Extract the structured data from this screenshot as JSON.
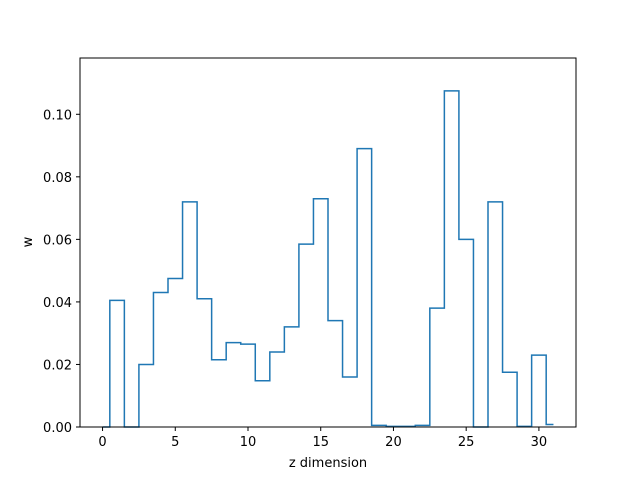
{
  "chart_data": {
    "type": "line",
    "drawstyle": "steps-mid",
    "title": "",
    "xlabel": "z dimension",
    "ylabel": "w",
    "xlim": [
      -1.55,
      32.55
    ],
    "ylim": [
      0.0,
      0.118
    ],
    "xticks": [
      0,
      5,
      10,
      15,
      20,
      25,
      30
    ],
    "xtick_labels": [
      "0",
      "5",
      "10",
      "15",
      "20",
      "25",
      "30"
    ],
    "yticks": [
      0.0,
      0.02,
      0.04,
      0.06,
      0.08,
      0.1
    ],
    "ytick_labels": [
      "0.00",
      "0.02",
      "0.04",
      "0.06",
      "0.08",
      "0.10"
    ],
    "grid": false,
    "legend": "none",
    "series": [
      {
        "color": "#1f77b4",
        "x": [
          0,
          1,
          2,
          3,
          4,
          5,
          6,
          7,
          8,
          9,
          10,
          11,
          12,
          13,
          14,
          15,
          16,
          17,
          18,
          19,
          20,
          21,
          22,
          23,
          24,
          25,
          26,
          27,
          28,
          29,
          30,
          31
        ],
        "y": [
          0.0,
          0.0405,
          0.0,
          0.02,
          0.043,
          0.0475,
          0.072,
          0.041,
          0.0215,
          0.027,
          0.0265,
          0.0148,
          0.024,
          0.032,
          0.0585,
          0.073,
          0.034,
          0.016,
          0.089,
          0.0005,
          0.0002,
          0.0002,
          0.0005,
          0.038,
          0.1075,
          0.06,
          0.0,
          0.072,
          0.0175,
          0.0002,
          0.023,
          0.0008
        ]
      }
    ]
  }
}
